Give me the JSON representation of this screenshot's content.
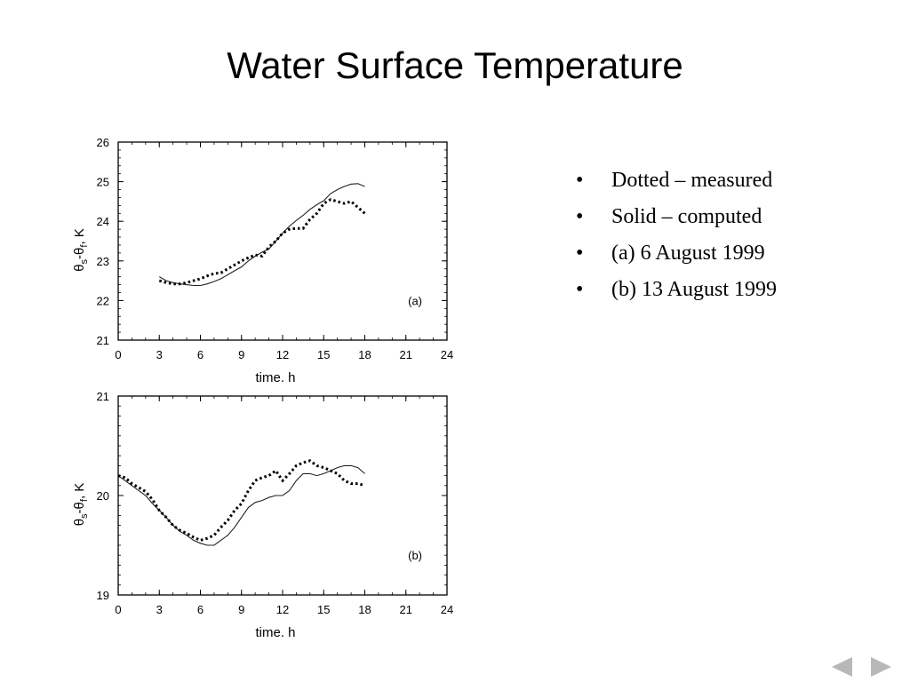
{
  "slide": {
    "title": "Water Surface Temperature",
    "bullets": [
      "Dotted – measured",
      "Solid – computed",
      "(a) 6 August 1999",
      "(b) 13 August 1999"
    ],
    "nav": {
      "prev_icon": "triangle-left-icon",
      "next_icon": "triangle-right-icon"
    }
  },
  "chart_data": [
    {
      "type": "line",
      "panel_label": "(a)",
      "xlabel": "time. h",
      "ylabel": "θs-θf, K",
      "xlim": [
        0,
        24
      ],
      "ylim": [
        21,
        26
      ],
      "xticks": [
        0,
        3,
        6,
        9,
        12,
        15,
        18,
        21,
        24
      ],
      "yticks": [
        21,
        22,
        23,
        24,
        25,
        26
      ],
      "series": [
        {
          "style": "solid",
          "points": [
            [
              3.0,
              22.6
            ],
            [
              3.5,
              22.5
            ],
            [
              4.0,
              22.45
            ],
            [
              4.5,
              22.42
            ],
            [
              5.0,
              22.4
            ],
            [
              5.5,
              22.38
            ],
            [
              6.0,
              22.38
            ],
            [
              6.5,
              22.42
            ],
            [
              7.0,
              22.48
            ],
            [
              7.5,
              22.55
            ],
            [
              8.0,
              22.65
            ],
            [
              8.5,
              22.75
            ],
            [
              9.0,
              22.85
            ],
            [
              9.5,
              23.0
            ],
            [
              10.0,
              23.12
            ],
            [
              10.5,
              23.22
            ],
            [
              11.0,
              23.3
            ],
            [
              11.5,
              23.5
            ],
            [
              12.0,
              23.7
            ],
            [
              12.5,
              23.88
            ],
            [
              13.0,
              24.02
            ],
            [
              13.5,
              24.15
            ],
            [
              14.0,
              24.3
            ],
            [
              14.5,
              24.42
            ],
            [
              15.0,
              24.52
            ],
            [
              15.5,
              24.7
            ],
            [
              16.0,
              24.8
            ],
            [
              16.5,
              24.88
            ],
            [
              17.0,
              24.94
            ],
            [
              17.5,
              24.95
            ],
            [
              18.0,
              24.88
            ]
          ]
        },
        {
          "style": "dotted",
          "points": [
            [
              3.0,
              22.5
            ],
            [
              3.5,
              22.45
            ],
            [
              4.0,
              22.42
            ],
            [
              4.5,
              22.42
            ],
            [
              5.0,
              22.45
            ],
            [
              5.5,
              22.5
            ],
            [
              6.0,
              22.55
            ],
            [
              6.5,
              22.62
            ],
            [
              7.0,
              22.68
            ],
            [
              7.5,
              22.7
            ],
            [
              8.0,
              22.8
            ],
            [
              8.5,
              22.9
            ],
            [
              9.0,
              23.0
            ],
            [
              9.5,
              23.08
            ],
            [
              10.0,
              23.15
            ],
            [
              10.5,
              23.12
            ],
            [
              11.0,
              23.35
            ],
            [
              11.5,
              23.5
            ],
            [
              12.0,
              23.7
            ],
            [
              12.5,
              23.8
            ],
            [
              13.0,
              23.82
            ],
            [
              13.5,
              23.82
            ],
            [
              14.0,
              24.05
            ],
            [
              14.5,
              24.2
            ],
            [
              15.0,
              24.45
            ],
            [
              15.5,
              24.55
            ],
            [
              16.0,
              24.5
            ],
            [
              16.5,
              24.45
            ],
            [
              17.0,
              24.5
            ],
            [
              17.5,
              24.35
            ],
            [
              18.0,
              24.2
            ]
          ]
        }
      ]
    },
    {
      "type": "line",
      "panel_label": "(b)",
      "xlabel": "time. h",
      "ylabel": "θs-θf, K",
      "xlim": [
        0,
        24
      ],
      "ylim": [
        19,
        21
      ],
      "xticks": [
        0,
        3,
        6,
        9,
        12,
        15,
        18,
        21,
        24
      ],
      "yticks": [
        19,
        20,
        21
      ],
      "series": [
        {
          "style": "solid",
          "points": [
            [
              0.0,
              20.2
            ],
            [
              0.5,
              20.15
            ],
            [
              1.0,
              20.1
            ],
            [
              1.5,
              20.05
            ],
            [
              2.0,
              20.0
            ],
            [
              2.5,
              19.92
            ],
            [
              3.0,
              19.85
            ],
            [
              3.5,
              19.78
            ],
            [
              4.0,
              19.7
            ],
            [
              4.5,
              19.64
            ],
            [
              5.0,
              19.6
            ],
            [
              5.5,
              19.55
            ],
            [
              6.0,
              19.52
            ],
            [
              6.5,
              19.5
            ],
            [
              7.0,
              19.5
            ],
            [
              7.5,
              19.55
            ],
            [
              8.0,
              19.6
            ],
            [
              8.5,
              19.68
            ],
            [
              9.0,
              19.78
            ],
            [
              9.5,
              19.88
            ],
            [
              10.0,
              19.93
            ],
            [
              10.5,
              19.95
            ],
            [
              11.0,
              19.98
            ],
            [
              11.5,
              20.0
            ],
            [
              12.0,
              20.0
            ],
            [
              12.5,
              20.05
            ],
            [
              13.0,
              20.15
            ],
            [
              13.5,
              20.22
            ],
            [
              14.0,
              20.22
            ],
            [
              14.5,
              20.2
            ],
            [
              15.0,
              20.22
            ],
            [
              15.5,
              20.25
            ],
            [
              16.0,
              20.28
            ],
            [
              16.5,
              20.3
            ],
            [
              17.0,
              20.3
            ],
            [
              17.5,
              20.28
            ],
            [
              18.0,
              20.22
            ]
          ]
        },
        {
          "style": "dotted",
          "points": [
            [
              0.0,
              20.2
            ],
            [
              0.5,
              20.18
            ],
            [
              1.0,
              20.12
            ],
            [
              1.5,
              20.08
            ],
            [
              2.0,
              20.04
            ],
            [
              2.5,
              19.96
            ],
            [
              3.0,
              19.85
            ],
            [
              3.5,
              19.78
            ],
            [
              4.0,
              19.7
            ],
            [
              4.5,
              19.65
            ],
            [
              5.0,
              19.62
            ],
            [
              5.5,
              19.58
            ],
            [
              6.0,
              19.55
            ],
            [
              6.5,
              19.57
            ],
            [
              7.0,
              19.6
            ],
            [
              7.5,
              19.68
            ],
            [
              8.0,
              19.75
            ],
            [
              8.5,
              19.85
            ],
            [
              9.0,
              19.92
            ],
            [
              9.5,
              20.05
            ],
            [
              10.0,
              20.15
            ],
            [
              10.5,
              20.18
            ],
            [
              11.0,
              20.2
            ],
            [
              11.5,
              20.25
            ],
            [
              12.0,
              20.15
            ],
            [
              12.5,
              20.22
            ],
            [
              13.0,
              20.3
            ],
            [
              13.5,
              20.33
            ],
            [
              14.0,
              20.35
            ],
            [
              14.5,
              20.3
            ],
            [
              15.0,
              20.28
            ],
            [
              15.5,
              20.25
            ],
            [
              16.0,
              20.22
            ],
            [
              16.5,
              20.15
            ],
            [
              17.0,
              20.12
            ],
            [
              17.5,
              20.12
            ],
            [
              18.0,
              20.1
            ]
          ]
        }
      ]
    }
  ]
}
